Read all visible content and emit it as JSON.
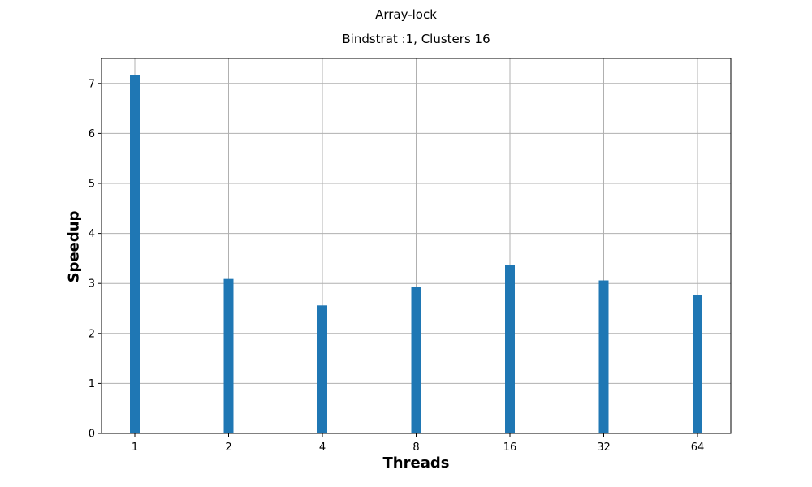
{
  "chart_data": {
    "type": "bar",
    "suptitle": "Array-lock",
    "title": "Bindstrat :1, Clusters 16",
    "xlabel": "Threads",
    "ylabel": "Speedup",
    "categories": [
      "1",
      "2",
      "4",
      "8",
      "16",
      "32",
      "64"
    ],
    "values": [
      7.16,
      3.09,
      2.56,
      2.93,
      3.37,
      3.06,
      2.76
    ],
    "yticks": [
      0,
      1,
      2,
      3,
      4,
      5,
      6,
      7
    ],
    "ylim": [
      0,
      7.5
    ],
    "grid": true,
    "bar_color": "#1f77b4",
    "grid_color": "#b0b0b0"
  }
}
